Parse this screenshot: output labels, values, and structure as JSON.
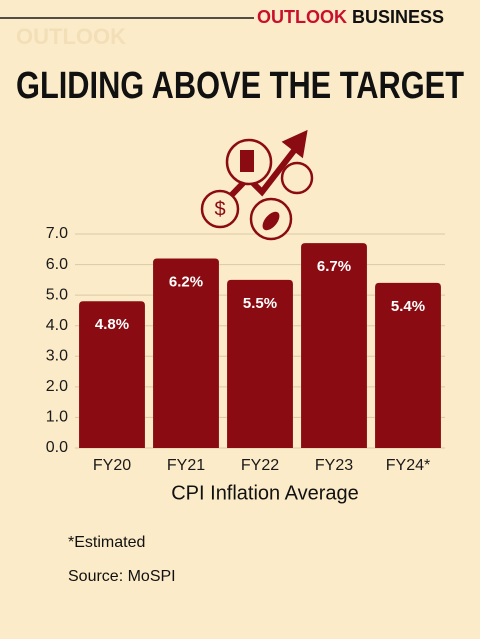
{
  "header": {
    "watermark": "OUTLOOK",
    "brand": [
      "OUTLOOK",
      "BUSINESS"
    ]
  },
  "chart_data": {
    "type": "bar",
    "title": "GLIDING ABOVE THE TARGET",
    "categories": [
      "FY20",
      "FY21",
      "FY22",
      "FY23",
      "FY24*"
    ],
    "values": [
      4.8,
      6.2,
      5.5,
      6.7,
      5.4
    ],
    "value_labels": [
      "4.8%",
      "6.2%",
      "5.5%",
      "6.7%",
      "5.4%"
    ],
    "color": "#8b0b12",
    "x_label": "CPI Inflation Average",
    "ylim": [
      0,
      7
    ],
    "yticks": [
      {
        "value": 0,
        "label": "0.0"
      },
      {
        "value": 1,
        "label": "1.0"
      },
      {
        "value": 2,
        "label": "2.0"
      },
      {
        "value": 3,
        "label": "3.0"
      },
      {
        "value": 4,
        "label": "4.0"
      },
      {
        "value": 5,
        "label": "5.0"
      },
      {
        "value": 6,
        "label": "6.0"
      },
      {
        "value": 7,
        "label": "7.0"
      }
    ],
    "grid": true
  },
  "footer": {
    "note": "*Estimated",
    "source": "Source: MoSPI"
  }
}
